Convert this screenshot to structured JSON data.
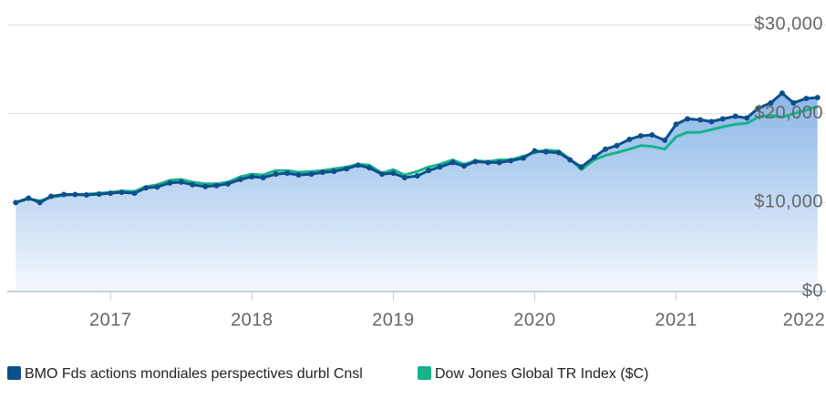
{
  "chart_data": {
    "type": "line",
    "x": [
      2016.33,
      2016.42,
      2016.5,
      2016.58,
      2016.67,
      2016.75,
      2016.83,
      2016.92,
      2017.0,
      2017.08,
      2017.17,
      2017.25,
      2017.33,
      2017.42,
      2017.5,
      2017.58,
      2017.67,
      2017.75,
      2017.83,
      2017.92,
      2018.0,
      2018.08,
      2018.17,
      2018.25,
      2018.33,
      2018.42,
      2018.5,
      2018.58,
      2018.67,
      2018.75,
      2018.83,
      2018.92,
      2019.0,
      2019.08,
      2019.17,
      2019.25,
      2019.33,
      2019.42,
      2019.5,
      2019.58,
      2019.67,
      2019.75,
      2019.83,
      2019.92,
      2020.0,
      2020.08,
      2020.17,
      2020.25,
      2020.33,
      2020.42,
      2020.5,
      2020.58,
      2020.67,
      2020.75,
      2020.83,
      2020.92,
      2021.0,
      2021.08,
      2021.17,
      2021.25,
      2021.33,
      2021.42,
      2021.5,
      2021.58,
      2021.67,
      2021.75,
      2021.83,
      2021.92,
      2022.0
    ],
    "series": [
      {
        "name": "BMO Fds actions mondiales perspectives durbl Cnsl",
        "color": "#0d4f8b",
        "area": true,
        "values": [
          10000,
          10500,
          10000,
          10700,
          10900,
          10900,
          10850,
          10950,
          11050,
          11150,
          11050,
          11650,
          11750,
          12200,
          12300,
          12000,
          11800,
          11900,
          12100,
          12600,
          12900,
          12800,
          13200,
          13300,
          13100,
          13200,
          13400,
          13500,
          13800,
          14200,
          13900,
          13200,
          13300,
          12800,
          13000,
          13600,
          14000,
          14500,
          14100,
          14600,
          14500,
          14500,
          14700,
          15000,
          15800,
          15700,
          15600,
          14800,
          14000,
          15100,
          16000,
          16400,
          17100,
          17500,
          17600,
          17000,
          18800,
          19400,
          19300,
          19100,
          19400,
          19700,
          19500,
          20600,
          21200,
          22300,
          21200,
          21700,
          21800
        ]
      },
      {
        "name": "Dow Jones Global TR Index ($C)",
        "color": "#16b28c",
        "values": [
          10000,
          10400,
          10200,
          10600,
          10800,
          10900,
          10950,
          11050,
          11150,
          11300,
          11250,
          11800,
          12000,
          12500,
          12600,
          12300,
          12100,
          12100,
          12300,
          12900,
          13200,
          13100,
          13600,
          13600,
          13400,
          13500,
          13600,
          13800,
          14000,
          14300,
          14200,
          13300,
          13700,
          13100,
          13500,
          14000,
          14300,
          14800,
          14300,
          14700,
          14600,
          14800,
          14800,
          15200,
          15600,
          15900,
          15800,
          14900,
          13700,
          14800,
          15300,
          15600,
          16000,
          16400,
          16300,
          16000,
          17400,
          17900,
          17900,
          18200,
          18500,
          18800,
          18900,
          19600,
          19800,
          19600,
          20000,
          20400,
          20800
        ]
      }
    ],
    "xlim": [
      2016.27,
      2022.06
    ],
    "xticks": [
      2017,
      2018,
      2019,
      2020,
      2021,
      2022
    ],
    "ylim": [
      0,
      30000
    ],
    "yticks": [
      {
        "value": 0,
        "label": "$0"
      },
      {
        "value": 10000,
        "label": "$10,000"
      },
      {
        "value": 20000,
        "label": "$20,000"
      },
      {
        "value": 30000,
        "label": "$30,000"
      }
    ],
    "grid": true
  }
}
